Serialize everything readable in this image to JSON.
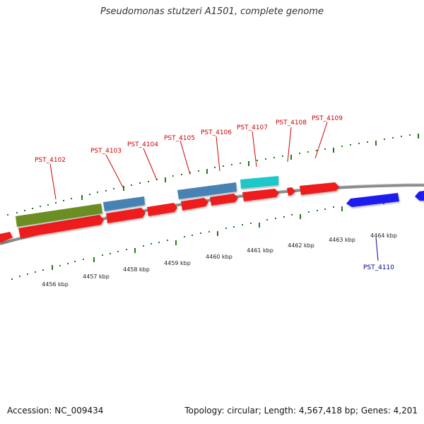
{
  "title": "Pseudomonas stutzeri A1501, complete genome",
  "footer": {
    "accession": "Accession: NC_009434",
    "stats": "Topology: circular; Length: 4,567,418 bp; Genes: 4,201"
  },
  "colors": {
    "forward_cds": "#ee1c1c",
    "reverse_cds": "#1a1aee",
    "backbone": "#8c8c8c",
    "ticks": "#1f7a1f",
    "label_forward": "#cc0000",
    "label_reverse": "#000099",
    "feature_green": "#6b8e23",
    "feature_steelblue": "#4682b4",
    "feature_cyan": "#1fc8c8"
  },
  "kbp_labels": [
    "4456 kbp",
    "4457 kbp",
    "4458 kbp",
    "4459 kbp",
    "4460 kbp",
    "4461 kbp",
    "4462 kbp",
    "4463 kbp",
    "4464 kbp"
  ],
  "gene_labels": {
    "forward": [
      "PST_4102",
      "PST_4103",
      "PST_4104",
      "PST_4105",
      "PST_4106",
      "PST_4107",
      "PST_4108",
      "PST_4109"
    ],
    "reverse": [
      "PST_4110"
    ]
  }
}
